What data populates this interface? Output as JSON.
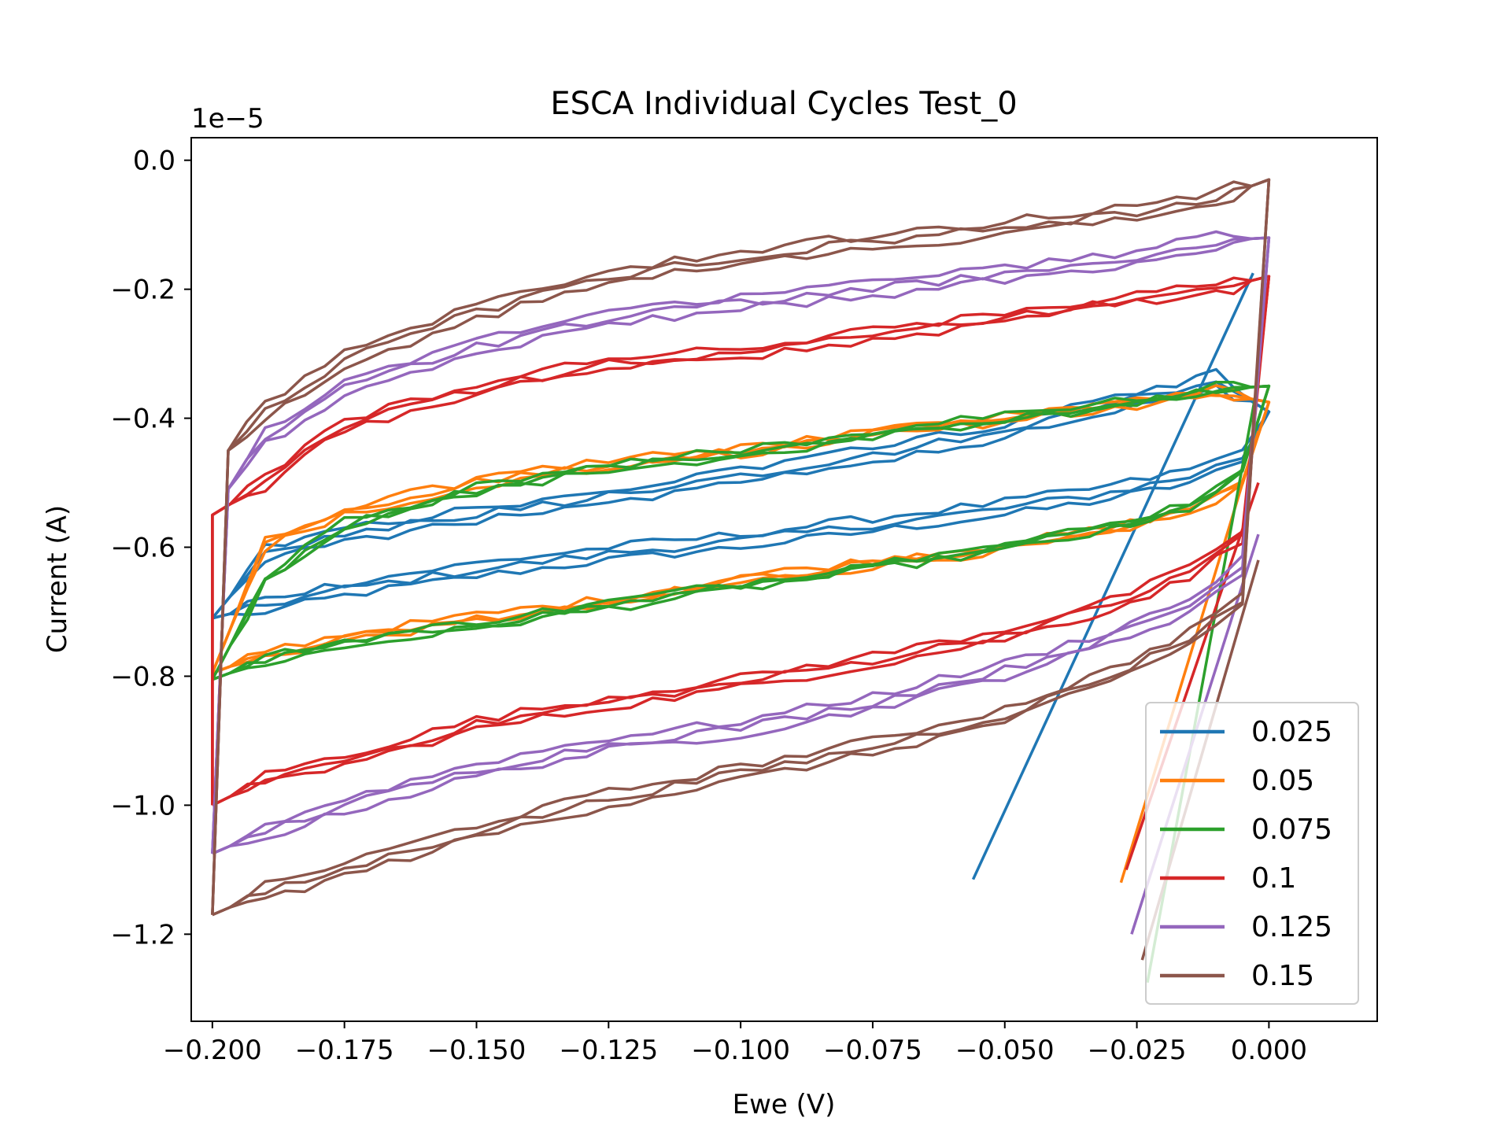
{
  "chart_data": {
    "type": "line",
    "title": "ESCA Individual Cycles Test_0",
    "xlabel": "Ewe (V)",
    "ylabel": "Current (A)",
    "y_offset_label": "1e−5",
    "xlim": [
      -0.204,
      0.0205
    ],
    "ylim": [
      -1.335,
      0.035
    ],
    "grid": false,
    "legend": "lower-right",
    "x_ticks": [
      -0.2,
      -0.175,
      -0.15,
      -0.125,
      -0.1,
      -0.075,
      -0.05,
      -0.025,
      0.0
    ],
    "x_tick_labels": [
      "−0.200",
      "−0.175",
      "−0.150",
      "−0.125",
      "−0.100",
      "−0.075",
      "−0.050",
      "−0.025",
      "0.000"
    ],
    "y_ticks": [
      0.0,
      -0.2,
      -0.4,
      -0.6,
      -0.8,
      -1.0,
      -1.2
    ],
    "y_tick_labels": [
      "0.0",
      "−0.2",
      "−0.4",
      "−0.6",
      "−0.8",
      "−1.0",
      "−1.2"
    ],
    "series": [
      {
        "name": "0.025",
        "color": "#1f77b4",
        "initial": [
          [
            -0.056,
            -1.115
          ],
          [
            -0.003,
            -0.175
          ]
        ],
        "anodic": [
          [
            -0.2,
            -0.71
          ],
          [
            -0.19,
            -0.69
          ],
          [
            -0.175,
            -0.665
          ],
          [
            -0.15,
            -0.635
          ],
          [
            -0.125,
            -0.61
          ],
          [
            -0.1,
            -0.59
          ],
          [
            -0.075,
            -0.565
          ],
          [
            -0.05,
            -0.54
          ],
          [
            -0.03,
            -0.515
          ],
          [
            -0.015,
            -0.49
          ],
          [
            -0.005,
            -0.46
          ],
          [
            0.0,
            -0.39
          ]
        ],
        "cathodic": [
          [
            0.0,
            -0.315
          ],
          [
            -0.01,
            -0.34
          ],
          [
            -0.025,
            -0.37
          ],
          [
            -0.05,
            -0.42
          ],
          [
            -0.075,
            -0.455
          ],
          [
            -0.1,
            -0.49
          ],
          [
            -0.125,
            -0.52
          ],
          [
            -0.15,
            -0.55
          ],
          [
            -0.175,
            -0.58
          ],
          [
            -0.19,
            -0.61
          ],
          [
            -0.2,
            -0.71
          ]
        ],
        "spread": 0.02
      },
      {
        "name": "0.05",
        "color": "#ff7f0e",
        "initial": [
          [
            -0.028,
            -1.12
          ],
          [
            -0.002,
            -0.42
          ]
        ],
        "anodic": [
          [
            -0.2,
            -0.795
          ],
          [
            -0.19,
            -0.765
          ],
          [
            -0.175,
            -0.74
          ],
          [
            -0.15,
            -0.71
          ],
          [
            -0.125,
            -0.685
          ],
          [
            -0.1,
            -0.65
          ],
          [
            -0.075,
            -0.625
          ],
          [
            -0.05,
            -0.6
          ],
          [
            -0.03,
            -0.575
          ],
          [
            -0.015,
            -0.545
          ],
          [
            -0.005,
            -0.5
          ],
          [
            0.0,
            -0.375
          ]
        ],
        "cathodic": [
          [
            0.0,
            -0.345
          ],
          [
            -0.01,
            -0.36
          ],
          [
            -0.025,
            -0.375
          ],
          [
            -0.05,
            -0.4
          ],
          [
            -0.075,
            -0.425
          ],
          [
            -0.1,
            -0.45
          ],
          [
            -0.125,
            -0.47
          ],
          [
            -0.15,
            -0.5
          ],
          [
            -0.175,
            -0.545
          ],
          [
            -0.19,
            -0.595
          ],
          [
            -0.2,
            -0.795
          ]
        ],
        "spread": 0.01
      },
      {
        "name": "0.075",
        "color": "#2ca02c",
        "initial": [
          [
            -0.023,
            -1.275
          ],
          [
            -0.002,
            -0.34
          ]
        ],
        "anodic": [
          [
            -0.2,
            -0.805
          ],
          [
            -0.19,
            -0.775
          ],
          [
            -0.175,
            -0.75
          ],
          [
            -0.15,
            -0.72
          ],
          [
            -0.125,
            -0.69
          ],
          [
            -0.1,
            -0.66
          ],
          [
            -0.075,
            -0.63
          ],
          [
            -0.05,
            -0.6
          ],
          [
            -0.03,
            -0.57
          ],
          [
            -0.015,
            -0.535
          ],
          [
            -0.005,
            -0.48
          ],
          [
            0.0,
            -0.35
          ]
        ],
        "cathodic": [
          [
            0.0,
            -0.34
          ],
          [
            -0.01,
            -0.355
          ],
          [
            -0.025,
            -0.375
          ],
          [
            -0.05,
            -0.4
          ],
          [
            -0.075,
            -0.425
          ],
          [
            -0.1,
            -0.455
          ],
          [
            -0.125,
            -0.475
          ],
          [
            -0.15,
            -0.51
          ],
          [
            -0.175,
            -0.565
          ],
          [
            -0.19,
            -0.65
          ],
          [
            -0.2,
            -0.805
          ]
        ],
        "spread": 0.01
      },
      {
        "name": "0.1",
        "color": "#d62728",
        "initial": [
          [
            -0.027,
            -1.1
          ],
          [
            -0.002,
            -0.5
          ]
        ],
        "anodic": [
          [
            -0.2,
            -1.0
          ],
          [
            -0.19,
            -0.96
          ],
          [
            -0.175,
            -0.93
          ],
          [
            -0.15,
            -0.875
          ],
          [
            -0.125,
            -0.84
          ],
          [
            -0.1,
            -0.81
          ],
          [
            -0.075,
            -0.775
          ],
          [
            -0.05,
            -0.735
          ],
          [
            -0.03,
            -0.69
          ],
          [
            -0.015,
            -0.64
          ],
          [
            -0.005,
            -0.58
          ],
          [
            0.0,
            -0.18
          ]
        ],
        "cathodic": [
          [
            0.0,
            -0.185
          ],
          [
            -0.01,
            -0.2
          ],
          [
            -0.025,
            -0.215
          ],
          [
            -0.05,
            -0.245
          ],
          [
            -0.075,
            -0.27
          ],
          [
            -0.1,
            -0.3
          ],
          [
            -0.125,
            -0.315
          ],
          [
            -0.15,
            -0.355
          ],
          [
            -0.175,
            -0.41
          ],
          [
            -0.19,
            -0.5
          ],
          [
            -0.2,
            -0.55
          ],
          [
            -0.2,
            -1.0
          ]
        ],
        "spread": 0.015
      },
      {
        "name": "0.125",
        "color": "#9467bd",
        "initial": [
          [
            -0.026,
            -1.2
          ],
          [
            -0.002,
            -0.58
          ]
        ],
        "anodic": [
          [
            -0.2,
            -1.075
          ],
          [
            -0.19,
            -1.04
          ],
          [
            -0.175,
            -1.0
          ],
          [
            -0.15,
            -0.945
          ],
          [
            -0.125,
            -0.905
          ],
          [
            -0.1,
            -0.88
          ],
          [
            -0.075,
            -0.84
          ],
          [
            -0.05,
            -0.79
          ],
          [
            -0.03,
            -0.74
          ],
          [
            -0.015,
            -0.69
          ],
          [
            -0.005,
            -0.63
          ],
          [
            0.0,
            -0.12
          ]
        ],
        "cathodic": [
          [
            0.0,
            -0.11
          ],
          [
            -0.01,
            -0.125
          ],
          [
            -0.025,
            -0.15
          ],
          [
            -0.05,
            -0.175
          ],
          [
            -0.075,
            -0.2
          ],
          [
            -0.1,
            -0.22
          ],
          [
            -0.125,
            -0.245
          ],
          [
            -0.15,
            -0.29
          ],
          [
            -0.175,
            -0.355
          ],
          [
            -0.19,
            -0.43
          ],
          [
            -0.197,
            -0.51
          ],
          [
            -0.2,
            -1.075
          ]
        ],
        "spread": 0.02
      },
      {
        "name": "0.15",
        "color": "#8c564b",
        "initial": [
          [
            -0.024,
            -1.24
          ],
          [
            -0.002,
            -0.62
          ]
        ],
        "anodic": [
          [
            -0.2,
            -1.17
          ],
          [
            -0.19,
            -1.135
          ],
          [
            -0.175,
            -1.1
          ],
          [
            -0.15,
            -1.04
          ],
          [
            -0.125,
            -0.99
          ],
          [
            -0.1,
            -0.95
          ],
          [
            -0.075,
            -0.91
          ],
          [
            -0.05,
            -0.86
          ],
          [
            -0.03,
            -0.8
          ],
          [
            -0.015,
            -0.74
          ],
          [
            -0.005,
            -0.68
          ],
          [
            0.0,
            -0.03
          ]
        ],
        "cathodic": [
          [
            0.0,
            -0.035
          ],
          [
            -0.01,
            -0.06
          ],
          [
            -0.025,
            -0.08
          ],
          [
            -0.05,
            -0.105
          ],
          [
            -0.075,
            -0.125
          ],
          [
            -0.1,
            -0.15
          ],
          [
            -0.125,
            -0.18
          ],
          [
            -0.15,
            -0.235
          ],
          [
            -0.175,
            -0.31
          ],
          [
            -0.19,
            -0.39
          ],
          [
            -0.197,
            -0.45
          ],
          [
            -0.2,
            -1.17
          ]
        ],
        "spread": 0.02
      }
    ]
  }
}
